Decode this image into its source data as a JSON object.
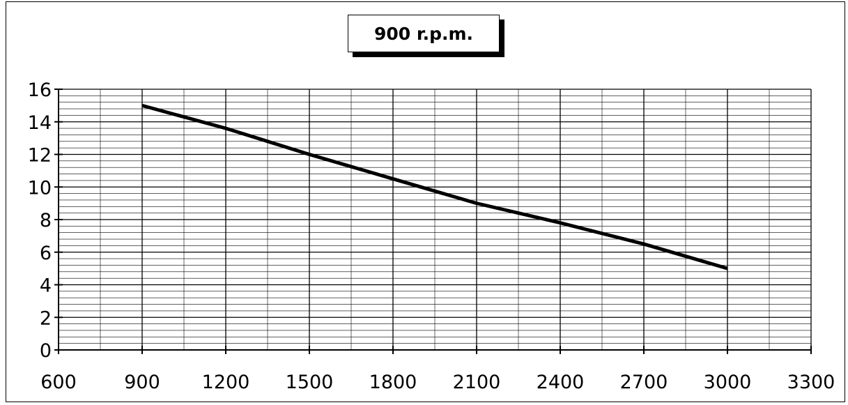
{
  "chart_data": {
    "type": "line",
    "title": "900 r.p.m.",
    "xlabel": "",
    "ylabel": "",
    "xlim": [
      600,
      3300
    ],
    "ylim": [
      0,
      16
    ],
    "x_ticks": [
      600,
      900,
      1200,
      1500,
      1800,
      2100,
      2400,
      2700,
      3000,
      3300
    ],
    "y_ticks": [
      0,
      2,
      4,
      6,
      8,
      10,
      12,
      14,
      16
    ],
    "x_minor_step": 150,
    "y_minor_step": 0.4,
    "grid": true,
    "legend": "none",
    "series": [
      {
        "x": [
          900,
          1200,
          1500,
          1800,
          2100,
          2400,
          2700,
          3000
        ],
        "y": [
          15,
          13.6,
          12,
          10.5,
          9,
          7.8,
          6.5,
          5
        ]
      }
    ],
    "colors": {
      "line": "#000000",
      "grid": "#000000",
      "background": "#ffffff"
    }
  }
}
